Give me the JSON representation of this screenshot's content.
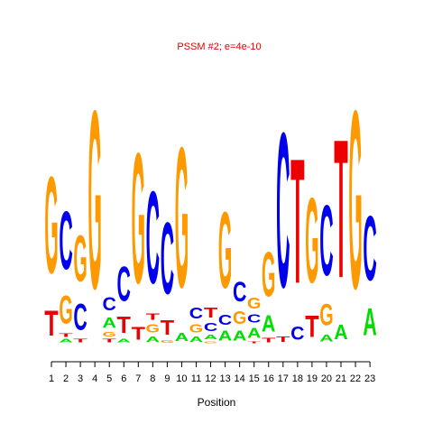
{
  "chart_data": {
    "type": "sequence-logo",
    "title": "PSSM #2; e=4e-10",
    "xlabel": "Position",
    "ylabel": "",
    "x": [
      "1",
      "2",
      "3",
      "4",
      "5",
      "6",
      "7",
      "8",
      "9",
      "10",
      "11",
      "12",
      "13",
      "14",
      "15",
      "16",
      "17",
      "18",
      "19",
      "20",
      "21",
      "22",
      "23"
    ],
    "ylim": [
      0,
      2
    ],
    "colors": {
      "A": "#00dd00",
      "C": "#0000ee",
      "G": "#ff9900",
      "T": "#ee0000",
      "title": "#e00000"
    },
    "positions": [
      {
        "pos": 1,
        "letters": [
          {
            "base": "T",
            "bits": 0.28
          },
          {
            "base": "G",
            "bits": 1.07
          }
        ]
      },
      {
        "pos": 2,
        "letters": [
          {
            "base": "A",
            "bits": 0.04
          },
          {
            "base": "T",
            "bits": 0.04
          },
          {
            "base": "G",
            "bits": 0.31
          },
          {
            "base": "C",
            "bits": 0.64
          }
        ]
      },
      {
        "pos": 3,
        "letters": [
          {
            "base": "T",
            "bits": 0.04
          },
          {
            "base": "C",
            "bits": 0.29
          },
          {
            "base": "G",
            "bits": 0.51
          }
        ]
      },
      {
        "pos": 4,
        "letters": [
          {
            "base": "G",
            "bits": 1.97
          }
        ]
      },
      {
        "pos": 5,
        "letters": [
          {
            "base": "T",
            "bits": 0.04
          },
          {
            "base": "G",
            "bits": 0.05
          },
          {
            "base": "A",
            "bits": 0.11
          },
          {
            "base": "C",
            "bits": 0.15
          }
        ]
      },
      {
        "pos": 6,
        "letters": [
          {
            "base": "A",
            "bits": 0.04
          },
          {
            "base": "T",
            "bits": 0.18
          },
          {
            "base": "C",
            "bits": 0.38
          }
        ]
      },
      {
        "pos": 7,
        "letters": [
          {
            "base": "T",
            "bits": 0.14
          },
          {
            "base": "G",
            "bits": 1.44
          }
        ]
      },
      {
        "pos": 8,
        "letters": [
          {
            "base": "A",
            "bits": 0.06
          },
          {
            "base": "G",
            "bits": 0.09
          },
          {
            "base": "T",
            "bits": 0.07
          },
          {
            "base": "C",
            "bits": 1.02
          }
        ]
      },
      {
        "pos": 9,
        "letters": [
          {
            "base": "G",
            "bits": 0.03
          },
          {
            "base": "T",
            "bits": 0.16
          },
          {
            "base": "C",
            "bits": 0.79
          }
        ]
      },
      {
        "pos": 10,
        "letters": [
          {
            "base": "A",
            "bits": 0.09
          },
          {
            "base": "G",
            "bits": 1.55
          }
        ]
      },
      {
        "pos": 11,
        "letters": [
          {
            "base": "A",
            "bits": 0.06
          },
          {
            "base": "G",
            "bits": 0.09
          },
          {
            "base": "C",
            "bits": 0.12
          }
        ]
      },
      {
        "pos": 12,
        "letters": [
          {
            "base": "G",
            "bits": 0.02
          },
          {
            "base": "A",
            "bits": 0.05
          },
          {
            "base": "C",
            "bits": 0.09
          },
          {
            "base": "T",
            "bits": 0.11
          }
        ]
      },
      {
        "pos": 13,
        "letters": [
          {
            "base": "A",
            "bits": 0.11
          },
          {
            "base": "C",
            "bits": 0.11
          },
          {
            "base": "G",
            "bits": 0.84
          }
        ]
      },
      {
        "pos": 14,
        "letters": [
          {
            "base": "A",
            "bits": 0.11
          },
          {
            "base": "G",
            "bits": 0.14
          },
          {
            "base": "C",
            "bits": 0.22
          }
        ]
      },
      {
        "pos": 15,
        "letters": [
          {
            "base": "T",
            "bits": 0.02
          },
          {
            "base": "A",
            "bits": 0.11
          },
          {
            "base": "C",
            "bits": 0.09
          },
          {
            "base": "G",
            "bits": 0.12
          }
        ]
      },
      {
        "pos": 16,
        "letters": [
          {
            "base": "T",
            "bits": 0.05
          },
          {
            "base": "A",
            "bits": 0.18
          },
          {
            "base": "G",
            "bits": 0.49
          }
        ]
      },
      {
        "pos": 17,
        "letters": [
          {
            "base": "T",
            "bits": 0.06
          },
          {
            "base": "C",
            "bits": 1.71
          }
        ]
      },
      {
        "pos": 18,
        "letters": [
          {
            "base": "C",
            "bits": 0.15
          },
          {
            "base": "T",
            "bits": 1.38
          }
        ]
      },
      {
        "pos": 19,
        "letters": [
          {
            "base": "T",
            "bits": 0.24
          },
          {
            "base": "G",
            "bits": 0.94
          }
        ]
      },
      {
        "pos": 20,
        "letters": [
          {
            "base": "A",
            "bits": 0.08
          },
          {
            "base": "G",
            "bits": 0.24
          },
          {
            "base": "C",
            "bits": 0.78
          }
        ]
      },
      {
        "pos": 21,
        "letters": [
          {
            "base": "A",
            "bits": 0.16
          },
          {
            "base": "T",
            "bits": 1.53
          }
        ]
      },
      {
        "pos": 22,
        "letters": [
          {
            "base": "G",
            "bits": 1.97
          }
        ]
      },
      {
        "pos": 23,
        "letters": [
          {
            "base": "A",
            "bits": 0.3
          },
          {
            "base": "C",
            "bits": 0.71
          }
        ]
      }
    ]
  }
}
